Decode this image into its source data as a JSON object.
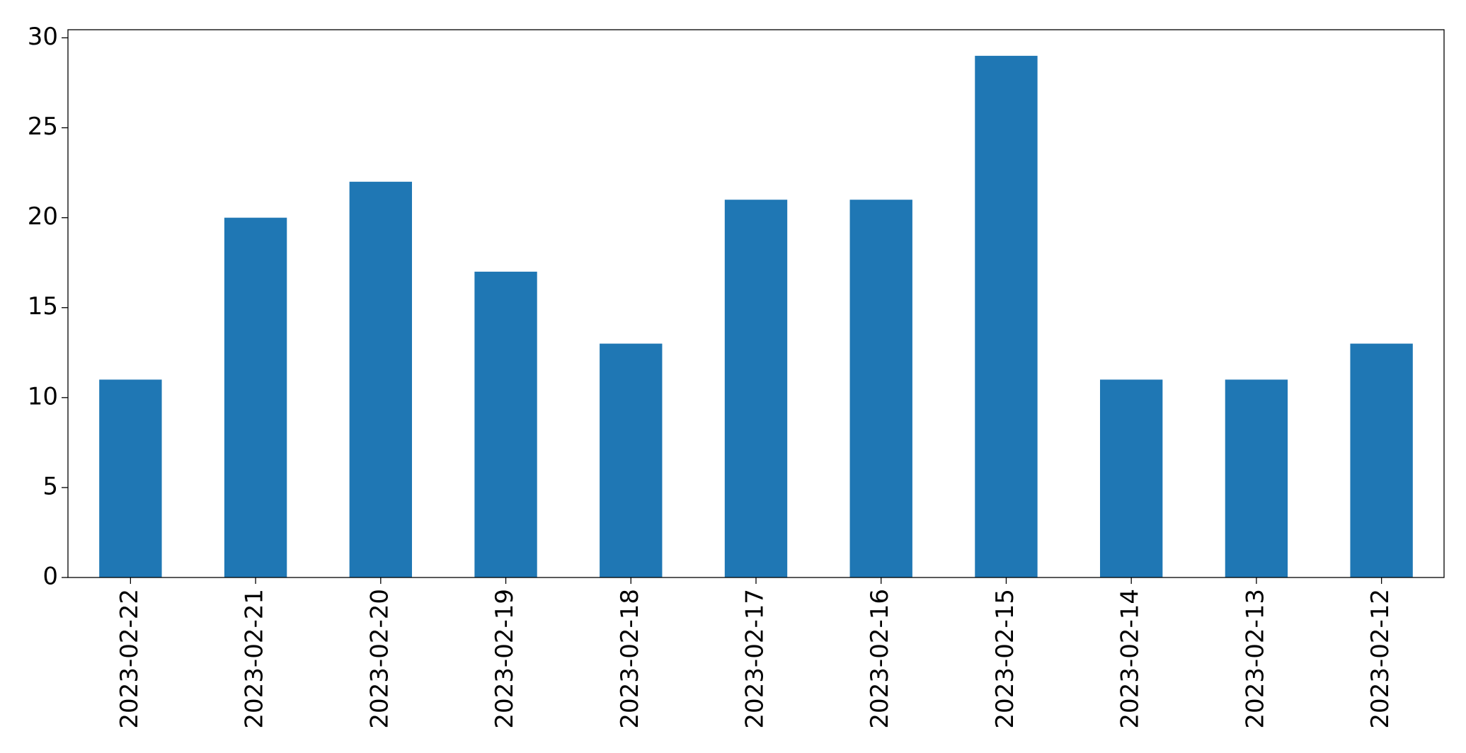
{
  "chart_data": {
    "type": "bar",
    "categories": [
      "2023-02-22",
      "2023-02-21",
      "2023-02-20",
      "2023-02-19",
      "2023-02-18",
      "2023-02-17",
      "2023-02-16",
      "2023-02-15",
      "2023-02-14",
      "2023-02-13",
      "2023-02-12"
    ],
    "values": [
      11,
      20,
      22,
      17,
      13,
      21,
      21,
      29,
      11,
      11,
      13
    ],
    "color": "#1f77b4",
    "ylim": [
      0,
      30.45
    ],
    "yticks": [
      0,
      5,
      10,
      15,
      20,
      25,
      30
    ],
    "grid": false
  }
}
